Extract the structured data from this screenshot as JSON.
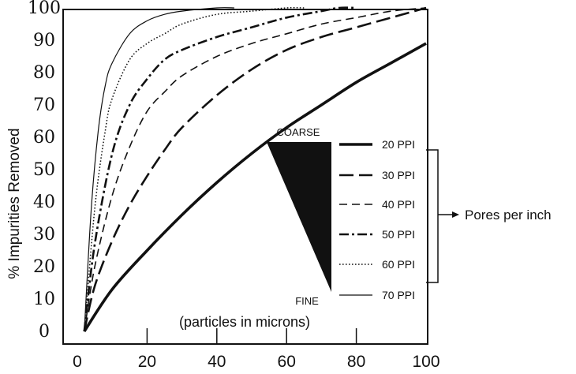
{
  "chart_data": {
    "type": "line",
    "xlabel": "(particles in microns)",
    "ylabel": "% Impurities Removed",
    "xlim": [
      0,
      100
    ],
    "ylim": [
      0,
      100
    ],
    "x_ticks": [
      "0",
      "20",
      "40",
      "60",
      "80",
      "100"
    ],
    "y_ticks": [
      "0",
      "10",
      "20",
      "30",
      "40",
      "50",
      "60",
      "70",
      "80",
      "90",
      "100"
    ],
    "grid": false,
    "legend_position": "right",
    "series": [
      {
        "name": "20 PPI",
        "style": "thick-solid",
        "x": [
          2,
          10,
          20,
          30,
          40,
          50,
          60,
          70,
          80,
          90,
          100
        ],
        "y": [
          0,
          13,
          25,
          36,
          46,
          55,
          63,
          70,
          77,
          83,
          89
        ]
      },
      {
        "name": "30 PPI",
        "style": "long-dash",
        "x": [
          2,
          5,
          10,
          15,
          20,
          25,
          30,
          40,
          50,
          60,
          70,
          80,
          90,
          100
        ],
        "y": [
          0,
          14,
          28,
          39,
          48,
          56,
          63,
          73,
          81,
          87,
          91,
          94,
          97,
          100
        ]
      },
      {
        "name": "40 PPI",
        "style": "dash",
        "x": [
          2,
          5,
          10,
          15,
          20,
          25,
          30,
          40,
          50,
          60,
          70,
          80,
          90,
          100
        ],
        "y": [
          0,
          20,
          42,
          57,
          68,
          74,
          79,
          85,
          89,
          92,
          95,
          97,
          99,
          100
        ]
      },
      {
        "name": "50 PPI",
        "style": "dash-dot",
        "x": [
          2,
          5,
          10,
          15,
          20,
          25,
          30,
          40,
          50,
          60,
          70,
          75,
          80
        ],
        "y": [
          0,
          27,
          55,
          70,
          78,
          84,
          87,
          91,
          94,
          97,
          99,
          100,
          100
        ]
      },
      {
        "name": "60 PPI",
        "style": "dotted",
        "x": [
          2,
          5,
          8,
          10,
          15,
          20,
          25,
          30,
          40,
          50,
          60,
          65
        ],
        "y": [
          0,
          38,
          62,
          72,
          84,
          89,
          92,
          95,
          98,
          99,
          100,
          100
        ]
      },
      {
        "name": "70 PPI",
        "style": "thin-solid",
        "x": [
          2,
          4,
          6,
          8,
          10,
          15,
          20,
          25,
          30,
          40,
          45
        ],
        "y": [
          0,
          38,
          62,
          76,
          83,
          92,
          96,
          98,
          99,
          100,
          100
        ]
      }
    ],
    "annotations": {
      "coarse": "COARSE",
      "fine": "FINE",
      "pores_label": "Pores per inch"
    }
  }
}
